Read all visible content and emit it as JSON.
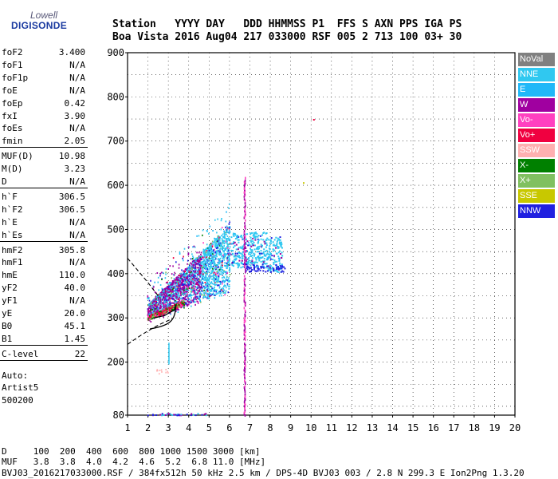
{
  "logo": {
    "line1": "Lowell",
    "line2": "DIGISONDE"
  },
  "header": {
    "line1": "Station   YYYY DAY   DDD HHMMSS P1  FFS S AXN PPS IGA PS",
    "line2": "Boa Vista 2016 Aug04 217 033000 RSF 005 2 713 100 03+ 30"
  },
  "params": {
    "group1": [
      [
        "foF2",
        "3.400"
      ],
      [
        "foF1",
        "N/A"
      ],
      [
        "foF1p",
        "N/A"
      ],
      [
        "foE",
        "N/A"
      ],
      [
        "foEp",
        "0.42"
      ],
      [
        "fxI",
        "3.90"
      ],
      [
        "foEs",
        "N/A"
      ],
      [
        "fmin",
        "2.05"
      ]
    ],
    "group2": [
      [
        "MUF(D)",
        "10.98"
      ],
      [
        "M(D)",
        "3.23"
      ],
      [
        "D",
        "N/A"
      ]
    ],
    "group3": [
      [
        "h`F",
        "306.5"
      ],
      [
        "h`F2",
        "306.5"
      ],
      [
        "h`E",
        "N/A"
      ],
      [
        "h`Es",
        "N/A"
      ]
    ],
    "group4": [
      [
        "hmF2",
        "305.8"
      ],
      [
        "hmF1",
        "N/A"
      ],
      [
        "hmE",
        "110.0"
      ],
      [
        "yF2",
        "40.0"
      ],
      [
        "yF1",
        "N/A"
      ],
      [
        "yE",
        "20.0"
      ],
      [
        "B0",
        "45.1"
      ],
      [
        "B1",
        "1.45"
      ]
    ],
    "group5": [
      [
        "C-level",
        "22"
      ]
    ],
    "auto": [
      "Auto:",
      "Artist5",
      "500200"
    ]
  },
  "legend": [
    {
      "label": "NoVal",
      "color": "#808080"
    },
    {
      "label": "NNE",
      "color": "#30c8f0"
    },
    {
      "label": "E",
      "color": "#20b8f8"
    },
    {
      "label": "W",
      "color": "#a000a0"
    },
    {
      "label": "Vo-",
      "color": "#ff40c0"
    },
    {
      "label": "Vo+",
      "color": "#f00040"
    },
    {
      "label": "SSW",
      "color": "#ffb0b0"
    },
    {
      "label": "X-",
      "color": "#008000"
    },
    {
      "label": "X+",
      "color": "#80c060"
    },
    {
      "label": "SSE",
      "color": "#c8c800"
    },
    {
      "label": "NNW",
      "color": "#2020e0"
    }
  ],
  "bottom": {
    "line1": "D     100  200  400  600  800 1000 1500 3000 [km]",
    "line2": "MUF   3.8  3.8  4.0  4.2  4.6  5.2  6.8 11.0 [MHz]",
    "footer": "BVJ03_2016217033000.RSF / 384fx512h 50 kHz 2.5 km / DPS-4D BVJ03 003 / 2.8 N 299.3 E Ion2Png 1.3.20"
  },
  "chart_data": {
    "type": "scatter",
    "xlim": [
      1,
      20
    ],
    "ylim": [
      80,
      900
    ],
    "xticks": [
      1,
      2,
      3,
      4,
      5,
      6,
      7,
      8,
      9,
      10,
      11,
      12,
      13,
      14,
      15,
      16,
      17,
      18,
      19,
      20
    ],
    "yticks": [
      80,
      200,
      300,
      400,
      500,
      600,
      700,
      800,
      900
    ],
    "grid": true,
    "ionogram_cluster": {
      "freq_range": [
        1.95,
        6.0
      ],
      "height_range": [
        295,
        540
      ]
    },
    "side_cluster": {
      "freq_range": [
        6.0,
        8.6
      ],
      "height_range": [
        400,
        500
      ]
    },
    "vertical_trace": {
      "freq": 6.75,
      "height_range": [
        80,
        620
      ]
    },
    "profile_curve": [
      [
        2.3,
        300
      ],
      [
        2.8,
        305
      ],
      [
        3.3,
        318
      ],
      [
        3.35,
        330
      ]
    ],
    "profile_extrapolation": [
      [
        1.0,
        240
      ],
      [
        2.2,
        280
      ],
      [
        3.2,
        298
      ]
    ],
    "isolated_points": [
      [
        10.1,
        750
      ],
      [
        9.6,
        607
      ]
    ]
  }
}
